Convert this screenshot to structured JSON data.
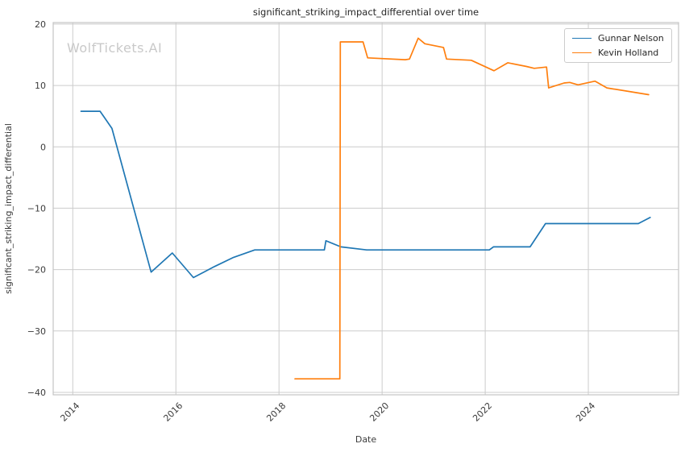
{
  "watermark": {
    "text": "WolfTickets.AI",
    "color": "#c9c9c9"
  },
  "chart_data": {
    "type": "line",
    "title": "significant_striking_impact_differential over time",
    "xlabel": "Date",
    "ylabel": "significant_striking_impact_differential",
    "x_ticks": [
      2014,
      2016,
      2018,
      2020,
      2022,
      2024
    ],
    "y_ticks": [
      20,
      10,
      0,
      -10,
      -20,
      -30,
      -40
    ],
    "xlim": [
      2013.62,
      2025.75
    ],
    "ylim": [
      -40.4,
      20.25
    ],
    "grid": true,
    "legend": {
      "position": "upper-right",
      "entries": [
        "Gunnar Nelson",
        "Kevin Holland"
      ]
    },
    "series": [
      {
        "name": "Gunnar Nelson",
        "color": "#1f77b4",
        "points": [
          [
            2014.16,
            5.8
          ],
          [
            2014.53,
            5.8
          ],
          [
            2014.76,
            3.0
          ],
          [
            2015.52,
            -20.4
          ],
          [
            2015.93,
            -17.3
          ],
          [
            2016.34,
            -21.3
          ],
          [
            2016.75,
            -19.5
          ],
          [
            2017.12,
            -18.0
          ],
          [
            2017.53,
            -16.8
          ],
          [
            2018.88,
            -16.8
          ],
          [
            2018.91,
            -15.3
          ],
          [
            2019.2,
            -16.3
          ],
          [
            2019.7,
            -16.8
          ],
          [
            2022.08,
            -16.8
          ],
          [
            2022.16,
            -16.3
          ],
          [
            2022.87,
            -16.3
          ],
          [
            2023.17,
            -12.5
          ],
          [
            2024.97,
            -12.5
          ],
          [
            2025.2,
            -11.5
          ]
        ]
      },
      {
        "name": "Kevin Holland",
        "color": "#ff7f0e",
        "points": [
          [
            2018.31,
            -37.8
          ],
          [
            2019.18,
            -37.8
          ],
          [
            2019.19,
            17.1
          ],
          [
            2019.63,
            17.1
          ],
          [
            2019.72,
            14.5
          ],
          [
            2020.45,
            14.2
          ],
          [
            2020.53,
            14.3
          ],
          [
            2020.7,
            17.7
          ],
          [
            2020.83,
            16.8
          ],
          [
            2021.19,
            16.2
          ],
          [
            2021.25,
            14.3
          ],
          [
            2021.73,
            14.1
          ],
          [
            2022.17,
            12.4
          ],
          [
            2022.44,
            13.7
          ],
          [
            2022.8,
            13.1
          ],
          [
            2022.95,
            12.8
          ],
          [
            2023.19,
            13.0
          ],
          [
            2023.23,
            9.6
          ],
          [
            2023.53,
            10.4
          ],
          [
            2023.64,
            10.5
          ],
          [
            2023.8,
            10.1
          ],
          [
            2024.13,
            10.7
          ],
          [
            2024.36,
            9.6
          ],
          [
            2025.17,
            8.5
          ]
        ]
      }
    ]
  },
  "style": {
    "grid_color": "#cccccc",
    "spine_color": "#c4c4c4",
    "line_width": 1.7
  }
}
